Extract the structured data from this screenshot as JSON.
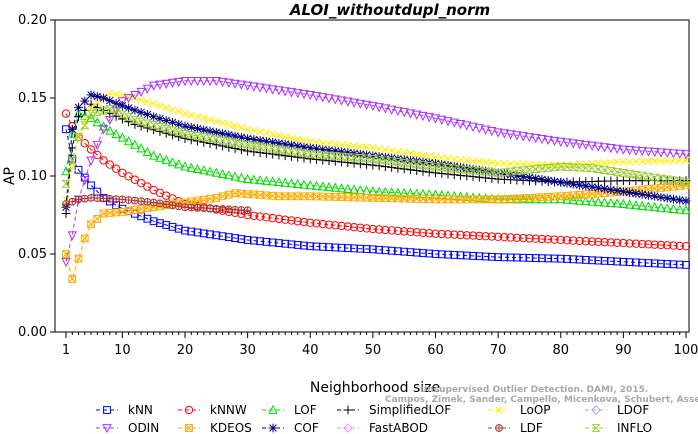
{
  "chart_data": {
    "type": "line",
    "title": "ALOI_withoutdupl_norm",
    "xlabel": "Neighborhood size",
    "ylabel": "AP",
    "xlim": [
      1,
      100
    ],
    "ylim": [
      0.0,
      0.2
    ],
    "xticks": [
      1,
      10,
      20,
      30,
      40,
      50,
      60,
      70,
      80,
      90,
      100
    ],
    "yticks": [
      "0.00",
      "0.05",
      "0.10",
      "0.15",
      "0.20"
    ],
    "grid": false,
    "legend_position": "bottom",
    "series": [
      {
        "name": "kNN",
        "color": "#0000ff",
        "marker": "square",
        "points": [
          [
            1,
            0.13
          ],
          [
            2,
            0.111
          ],
          [
            3,
            0.104
          ],
          [
            4,
            0.099
          ],
          [
            5,
            0.094
          ],
          [
            7,
            0.086
          ],
          [
            10,
            0.079
          ],
          [
            15,
            0.071
          ],
          [
            20,
            0.065
          ],
          [
            30,
            0.059
          ],
          [
            40,
            0.055
          ],
          [
            50,
            0.053
          ],
          [
            60,
            0.05
          ],
          [
            70,
            0.048
          ],
          [
            80,
            0.047
          ],
          [
            90,
            0.045
          ],
          [
            100,
            0.043
          ]
        ]
      },
      {
        "name": "kNNW",
        "color": "#ff0000",
        "marker": "circle",
        "points": [
          [
            1,
            0.14
          ],
          [
            2,
            0.132
          ],
          [
            3,
            0.125
          ],
          [
            5,
            0.117
          ],
          [
            7,
            0.11
          ],
          [
            10,
            0.102
          ],
          [
            15,
            0.091
          ],
          [
            20,
            0.082
          ],
          [
            30,
            0.075
          ],
          [
            40,
            0.07
          ],
          [
            50,
            0.066
          ],
          [
            60,
            0.063
          ],
          [
            70,
            0.061
          ],
          [
            80,
            0.059
          ],
          [
            90,
            0.057
          ],
          [
            100,
            0.055
          ]
        ]
      },
      {
        "name": "LOF",
        "color": "#00dd00",
        "marker": "triangle",
        "points": [
          [
            1,
            0.103
          ],
          [
            2,
            0.127
          ],
          [
            3,
            0.14
          ],
          [
            5,
            0.137
          ],
          [
            8,
            0.129
          ],
          [
            12,
            0.12
          ],
          [
            15,
            0.113
          ],
          [
            20,
            0.106
          ],
          [
            30,
            0.098
          ],
          [
            40,
            0.094
          ],
          [
            50,
            0.09
          ],
          [
            60,
            0.088
          ],
          [
            70,
            0.085
          ],
          [
            80,
            0.085
          ],
          [
            90,
            0.082
          ],
          [
            100,
            0.078
          ]
        ]
      },
      {
        "name": "SimplifiedLOF",
        "color": "#000000",
        "marker": "plus",
        "points": [
          [
            1,
            0.076
          ],
          [
            2,
            0.118
          ],
          [
            3,
            0.138
          ],
          [
            5,
            0.146
          ],
          [
            8,
            0.14
          ],
          [
            12,
            0.133
          ],
          [
            20,
            0.124
          ],
          [
            30,
            0.116
          ],
          [
            40,
            0.111
          ],
          [
            50,
            0.107
          ],
          [
            60,
            0.102
          ],
          [
            70,
            0.098
          ],
          [
            80,
            0.096
          ],
          [
            90,
            0.097
          ],
          [
            100,
            0.097
          ]
        ]
      },
      {
        "name": "LoOP",
        "color": "#ffee00",
        "marker": "x",
        "points": [
          [
            1,
            0.085
          ],
          [
            3,
            0.126
          ],
          [
            5,
            0.144
          ],
          [
            8,
            0.153
          ],
          [
            12,
            0.15
          ],
          [
            20,
            0.14
          ],
          [
            30,
            0.13
          ],
          [
            40,
            0.122
          ],
          [
            50,
            0.118
          ],
          [
            60,
            0.112
          ],
          [
            70,
            0.108
          ],
          [
            80,
            0.107
          ],
          [
            90,
            0.109
          ],
          [
            100,
            0.11
          ]
        ]
      },
      {
        "name": "LDOF",
        "color": "#a0a0ff",
        "marker": "diamond",
        "points": []
      },
      {
        "name": "ODIN",
        "color": "#aa33ff",
        "marker": "triangle-down",
        "points": [
          [
            1,
            0.045
          ],
          [
            2,
            0.062
          ],
          [
            3,
            0.085
          ],
          [
            5,
            0.11
          ],
          [
            7,
            0.13
          ],
          [
            10,
            0.148
          ],
          [
            15,
            0.158
          ],
          [
            20,
            0.161
          ],
          [
            25,
            0.161
          ],
          [
            30,
            0.158
          ],
          [
            40,
            0.152
          ],
          [
            50,
            0.145
          ],
          [
            60,
            0.137
          ],
          [
            70,
            0.128
          ],
          [
            80,
            0.122
          ],
          [
            90,
            0.117
          ],
          [
            100,
            0.114
          ]
        ]
      },
      {
        "name": "KDEOS",
        "color": "#ffaa00",
        "marker": "square-x",
        "points": [
          [
            1,
            0.05
          ],
          [
            2,
            0.034
          ],
          [
            3,
            0.047
          ],
          [
            4,
            0.06
          ],
          [
            5,
            0.069
          ],
          [
            7,
            0.076
          ],
          [
            10,
            0.077
          ],
          [
            15,
            0.08
          ],
          [
            20,
            0.083
          ],
          [
            25,
            0.086
          ],
          [
            28,
            0.089
          ],
          [
            35,
            0.087
          ],
          [
            40,
            0.087
          ],
          [
            50,
            0.086
          ],
          [
            60,
            0.085
          ],
          [
            70,
            0.085
          ],
          [
            80,
            0.087
          ],
          [
            90,
            0.09
          ],
          [
            100,
            0.094
          ]
        ]
      },
      {
        "name": "COF",
        "color": "#000080",
        "marker": "star",
        "points": [
          [
            1,
            0.08
          ],
          [
            2,
            0.13
          ],
          [
            3,
            0.144
          ],
          [
            5,
            0.152
          ],
          [
            7,
            0.15
          ],
          [
            10,
            0.145
          ],
          [
            15,
            0.138
          ],
          [
            20,
            0.132
          ],
          [
            30,
            0.124
          ],
          [
            40,
            0.118
          ],
          [
            50,
            0.113
          ],
          [
            60,
            0.108
          ],
          [
            70,
            0.102
          ],
          [
            80,
            0.096
          ],
          [
            90,
            0.09
          ],
          [
            100,
            0.084
          ]
        ]
      },
      {
        "name": "FastABOD",
        "color": "#ff88ff",
        "marker": "diamond",
        "points": []
      },
      {
        "name": "LDF",
        "color": "#aa3333",
        "marker": "circle-plus",
        "points": [
          [
            1,
            0.082
          ],
          [
            3,
            0.085
          ],
          [
            5,
            0.086
          ],
          [
            10,
            0.085
          ],
          [
            15,
            0.083
          ],
          [
            20,
            0.08
          ],
          [
            30,
            0.078
          ]
        ]
      },
      {
        "name": "INFLO",
        "color": "#99cc33",
        "marker": "hourglass",
        "points": [
          [
            1,
            0.095
          ],
          [
            3,
            0.125
          ],
          [
            5,
            0.14
          ],
          [
            8,
            0.143
          ],
          [
            12,
            0.136
          ],
          [
            20,
            0.127
          ],
          [
            30,
            0.12
          ],
          [
            40,
            0.114
          ],
          [
            50,
            0.111
          ],
          [
            60,
            0.106
          ],
          [
            70,
            0.102
          ],
          [
            75,
            0.104
          ],
          [
            80,
            0.106
          ],
          [
            85,
            0.105
          ],
          [
            90,
            0.102
          ],
          [
            100,
            0.096
          ]
        ]
      }
    ]
  },
  "watermark": {
    "line1": "Unsupervised Outlier Detection. DAMI, 2015.",
    "line2": "Campos, Zimek, Sander, Campello, Micenkova, Schubert, Assent, Houle"
  }
}
